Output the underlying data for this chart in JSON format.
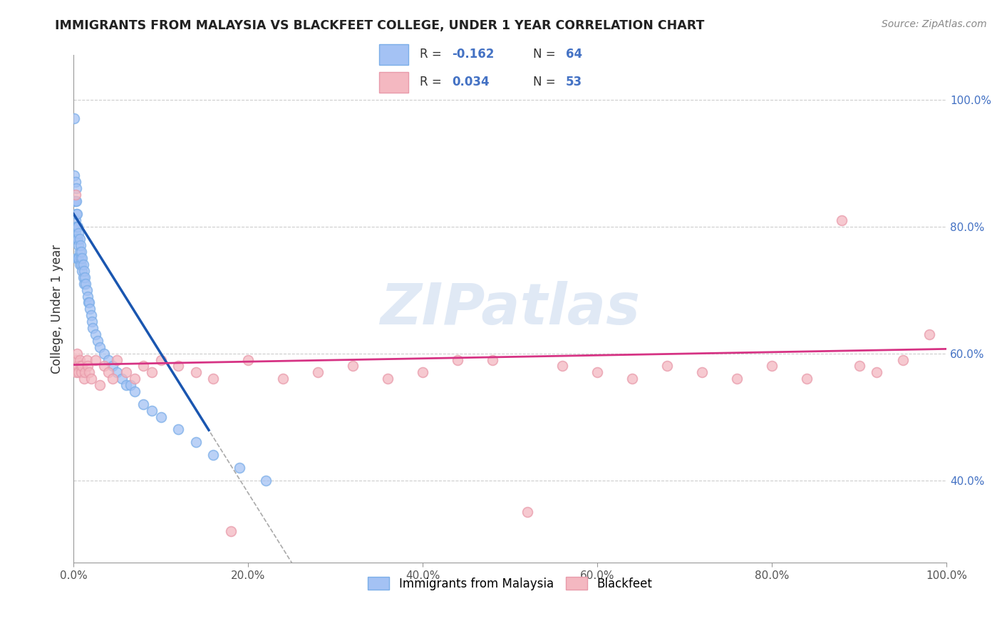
{
  "title": "IMMIGRANTS FROM MALAYSIA VS BLACKFEET COLLEGE, UNDER 1 YEAR CORRELATION CHART",
  "source_text": "Source: ZipAtlas.com",
  "ylabel": "College, Under 1 year",
  "legend_labels": [
    "Immigrants from Malaysia",
    "Blackfeet"
  ],
  "blue_color": "#a4c2f4",
  "pink_color": "#f4b8c1",
  "blue_fill": "#a4c2f4",
  "pink_fill": "#f4b8c1",
  "trend_blue": "#1a56b0",
  "trend_pink": "#d63384",
  "dash_color": "#aaaaaa",
  "watermark": "ZIPatlas",
  "xlim": [
    0.0,
    1.0
  ],
  "ylim": [
    0.27,
    1.07
  ],
  "xticks": [
    0.0,
    0.2,
    0.4,
    0.6,
    0.8,
    1.0
  ],
  "yticks": [
    0.4,
    0.6,
    0.8,
    1.0
  ],
  "xtick_labels": [
    "0.0%",
    "20.0%",
    "40.0%",
    "60.0%",
    "80.0%",
    "100.0%"
  ],
  "ytick_labels": [
    "40.0%",
    "60.0%",
    "80.0%",
    "100.0%"
  ],
  "legend_r1": "R = -0.162",
  "legend_n1": "N = 64",
  "legend_r2": "R = 0.034",
  "legend_n2": "N = 53",
  "blue_x": [
    0.001,
    0.001,
    0.001,
    0.002,
    0.002,
    0.002,
    0.002,
    0.003,
    0.003,
    0.003,
    0.003,
    0.003,
    0.003,
    0.004,
    0.004,
    0.004,
    0.005,
    0.005,
    0.005,
    0.006,
    0.006,
    0.006,
    0.007,
    0.007,
    0.007,
    0.008,
    0.008,
    0.009,
    0.009,
    0.01,
    0.01,
    0.011,
    0.011,
    0.012,
    0.012,
    0.013,
    0.014,
    0.015,
    0.016,
    0.017,
    0.018,
    0.019,
    0.02,
    0.021,
    0.022,
    0.025,
    0.028,
    0.03,
    0.035,
    0.04,
    0.045,
    0.05,
    0.055,
    0.06,
    0.065,
    0.07,
    0.08,
    0.09,
    0.1,
    0.12,
    0.14,
    0.16,
    0.19,
    0.22
  ],
  "blue_y": [
    0.97,
    0.88,
    0.84,
    0.87,
    0.84,
    0.81,
    0.79,
    0.86,
    0.84,
    0.82,
    0.8,
    0.78,
    0.75,
    0.82,
    0.8,
    0.78,
    0.8,
    0.78,
    0.75,
    0.79,
    0.77,
    0.75,
    0.78,
    0.76,
    0.74,
    0.77,
    0.75,
    0.76,
    0.74,
    0.75,
    0.73,
    0.74,
    0.72,
    0.73,
    0.71,
    0.72,
    0.71,
    0.7,
    0.69,
    0.68,
    0.68,
    0.67,
    0.66,
    0.65,
    0.64,
    0.63,
    0.62,
    0.61,
    0.6,
    0.59,
    0.58,
    0.57,
    0.56,
    0.55,
    0.55,
    0.54,
    0.52,
    0.51,
    0.5,
    0.48,
    0.46,
    0.44,
    0.42,
    0.4
  ],
  "pink_x": [
    0.002,
    0.003,
    0.003,
    0.004,
    0.005,
    0.006,
    0.007,
    0.008,
    0.009,
    0.01,
    0.012,
    0.013,
    0.015,
    0.016,
    0.018,
    0.02,
    0.025,
    0.03,
    0.035,
    0.04,
    0.045,
    0.05,
    0.06,
    0.07,
    0.08,
    0.09,
    0.1,
    0.12,
    0.14,
    0.16,
    0.18,
    0.2,
    0.24,
    0.28,
    0.32,
    0.36,
    0.4,
    0.44,
    0.48,
    0.52,
    0.56,
    0.6,
    0.64,
    0.68,
    0.72,
    0.76,
    0.8,
    0.84,
    0.88,
    0.9,
    0.92,
    0.95,
    0.98
  ],
  "pink_y": [
    0.85,
    0.59,
    0.57,
    0.6,
    0.58,
    0.57,
    0.59,
    0.58,
    0.57,
    0.58,
    0.56,
    0.57,
    0.59,
    0.58,
    0.57,
    0.56,
    0.59,
    0.55,
    0.58,
    0.57,
    0.56,
    0.59,
    0.57,
    0.56,
    0.58,
    0.57,
    0.59,
    0.58,
    0.57,
    0.56,
    0.32,
    0.59,
    0.56,
    0.57,
    0.58,
    0.56,
    0.57,
    0.59,
    0.59,
    0.35,
    0.58,
    0.57,
    0.56,
    0.58,
    0.57,
    0.56,
    0.58,
    0.56,
    0.81,
    0.58,
    0.57,
    0.59,
    0.63
  ]
}
